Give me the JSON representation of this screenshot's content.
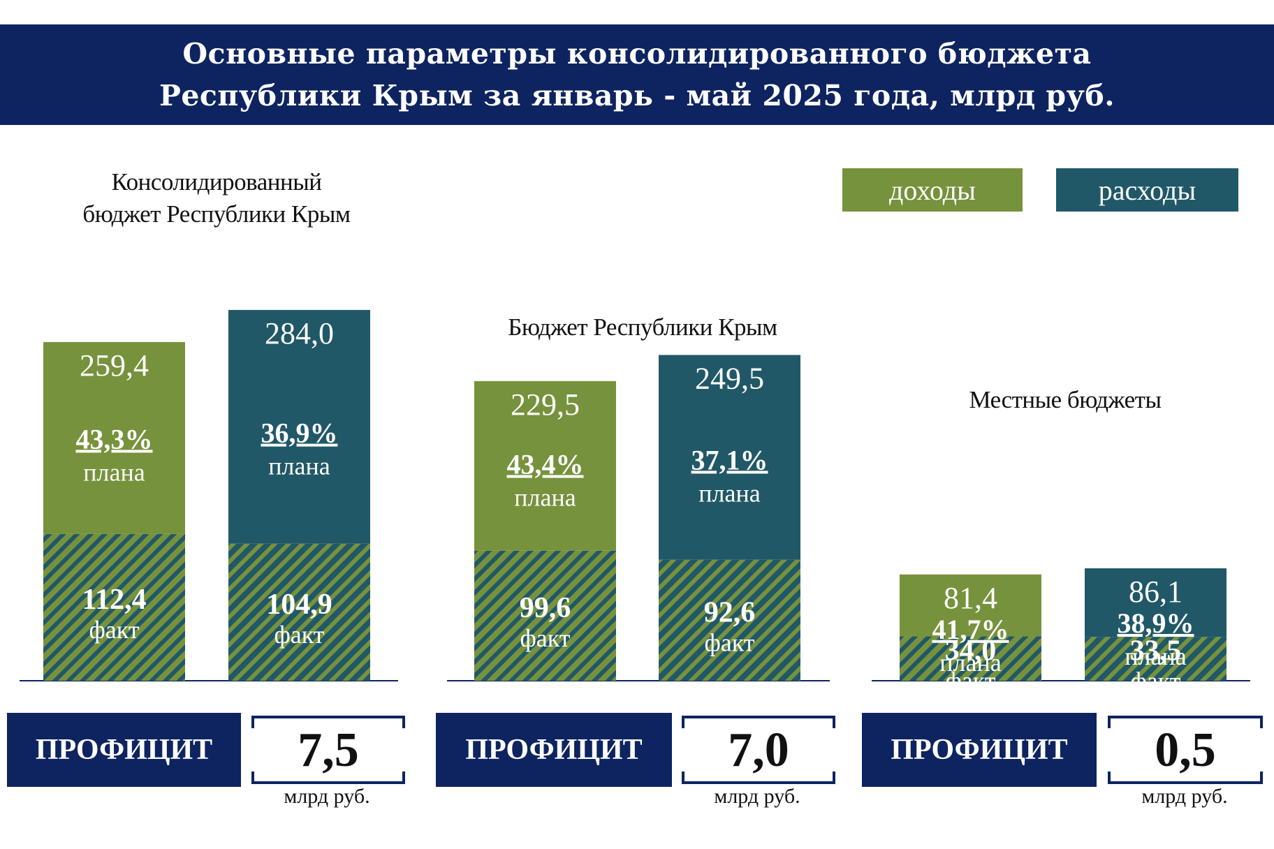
{
  "header": {
    "line1": "Основные  параметры  консолидированного  бюджета",
    "line2": "Республики Крым за январь - май 2025 года, млрд руб."
  },
  "legend": {
    "income_label": "доходы",
    "expense_label": "расходы"
  },
  "colors": {
    "income": "#76923c",
    "expense": "#215868",
    "banner": "#0e2460"
  },
  "chart_data": [
    {
      "type": "bar",
      "title": "Консолидированный бюджет Республики Крым",
      "title_lines": [
        "Консолидированный",
        "бюджет Республики Крым"
      ],
      "categories": [
        "доходы",
        "расходы"
      ],
      "series": [
        {
          "name": "доходы",
          "plan": "259,4",
          "pct": "43,3%",
          "pct_label": "плана",
          "fact": "112,4",
          "fact_label": "факт",
          "plan_value": 259.4,
          "fact_value": 112.4
        },
        {
          "name": "расходы",
          "plan": "284,0",
          "pct": "36,9%",
          "pct_label": "плана",
          "fact": "104,9",
          "fact_label": "факт",
          "plan_value": 284.0,
          "fact_value": 104.9
        }
      ],
      "surplus": {
        "label": "ПРОФИЦИТ",
        "value": "7,5",
        "unit": "млрд руб."
      }
    },
    {
      "type": "bar",
      "title": "Бюджет Республики Крым",
      "title_lines": [
        "Бюджет Республики Крым"
      ],
      "categories": [
        "доходы",
        "расходы"
      ],
      "series": [
        {
          "name": "доходы",
          "plan": "229,5",
          "pct": "43,4%",
          "pct_label": "плана",
          "fact": "99,6",
          "fact_label": "факт",
          "plan_value": 229.5,
          "fact_value": 99.6
        },
        {
          "name": "расходы",
          "plan": "249,5",
          "pct": "37,1%",
          "pct_label": "плана",
          "fact": "92,6",
          "fact_label": "факт",
          "plan_value": 249.5,
          "fact_value": 92.6
        }
      ],
      "surplus": {
        "label": "ПРОФИЦИТ",
        "value": "7,0",
        "unit": "млрд руб."
      }
    },
    {
      "type": "bar",
      "title": "Местные бюджеты",
      "title_lines": [
        "Местные бюджеты"
      ],
      "categories": [
        "доходы",
        "расходы"
      ],
      "series": [
        {
          "name": "доходы",
          "plan": "81,4",
          "pct": "41,7%",
          "pct_label": "плана",
          "fact": "34,0",
          "fact_label": "факт",
          "plan_value": 81.4,
          "fact_value": 34.0
        },
        {
          "name": "расходы",
          "plan": "86,1",
          "pct": "38,9%",
          "pct_label": "плана",
          "fact": "33,5",
          "fact_label": "факт",
          "plan_value": 86.1,
          "fact_value": 33.5
        }
      ],
      "surplus": {
        "label": "ПРОФИЦИТ",
        "value": "0,5",
        "unit": "млрд руб."
      }
    }
  ]
}
